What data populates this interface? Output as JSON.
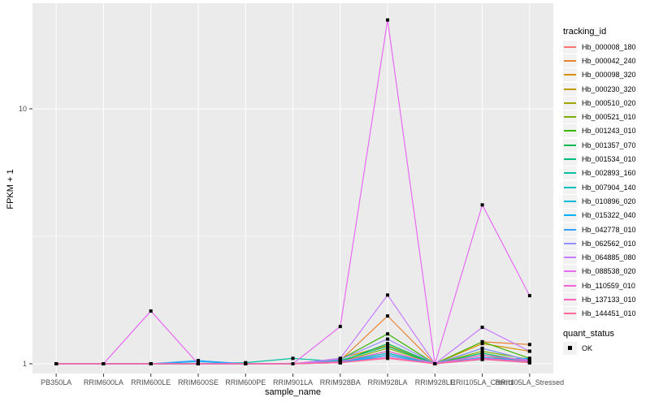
{
  "chart_data": {
    "type": "line",
    "title": "",
    "xlabel": "sample_name",
    "ylabel": "FPKM + 1",
    "y_scale": "log10",
    "y_ticks": [
      1,
      10
    ],
    "y_minor_ticks": [
      3.162
    ],
    "ylim": [
      0.92,
      26
    ],
    "grid": true,
    "legend_position": "right",
    "legend_title": "tracking_id",
    "marker": "black-square",
    "categories": [
      "PB350LA",
      "RRIM600LA",
      "RRIM600LE",
      "RRIM600SE",
      "RRIM600PE",
      "RRIM901LA",
      "RRIM928BA",
      "RRIM928LA",
      "RRIM928LE",
      "RRII105LA_Control",
      "RRII105LA_Stressed"
    ],
    "series": [
      {
        "name": "Hb_000008_180",
        "color": "#F8766D",
        "values": [
          1.0,
          1.0,
          1.0,
          1.0,
          1.0,
          1.0,
          1.02,
          1.1,
          1.0,
          1.06,
          1.02
        ]
      },
      {
        "name": "Hb_000042_240",
        "color": "#EA8331",
        "values": [
          1.0,
          1.0,
          1.0,
          1.0,
          1.0,
          1.0,
          1.03,
          1.54,
          1.0,
          1.22,
          1.19
        ]
      },
      {
        "name": "Hb_000098_320",
        "color": "#D89000",
        "values": [
          1.0,
          1.0,
          1.0,
          1.0,
          1.0,
          1.0,
          1.05,
          1.18,
          1.0,
          1.2,
          1.12
        ]
      },
      {
        "name": "Hb_000230_320",
        "color": "#C09B00",
        "values": [
          1.0,
          1.0,
          1.0,
          1.0,
          1.0,
          1.0,
          1.02,
          1.12,
          1.0,
          1.1,
          1.02
        ]
      },
      {
        "name": "Hb_000510_020",
        "color": "#A3A500",
        "values": [
          1.0,
          1.0,
          1.0,
          1.0,
          1.0,
          1.0,
          1.01,
          1.08,
          1.0,
          1.08,
          1.01
        ]
      },
      {
        "name": "Hb_000521_010",
        "color": "#7CAE00",
        "values": [
          1.0,
          1.0,
          1.0,
          1.0,
          1.0,
          1.0,
          1.02,
          1.15,
          1.0,
          1.12,
          1.04
        ]
      },
      {
        "name": "Hb_001243_010",
        "color": "#39B600",
        "values": [
          1.0,
          1.0,
          1.0,
          1.0,
          1.0,
          1.0,
          1.04,
          1.31,
          1.0,
          1.22,
          1.05
        ]
      },
      {
        "name": "Hb_001357_070",
        "color": "#00BB4E",
        "values": [
          1.0,
          1.0,
          1.0,
          1.0,
          1.0,
          1.0,
          1.02,
          1.2,
          1.0,
          1.15,
          1.03
        ]
      },
      {
        "name": "Hb_001534_010",
        "color": "#00BF7D",
        "values": [
          1.0,
          1.0,
          1.0,
          1.0,
          1.0,
          1.0,
          1.03,
          1.17,
          1.0,
          1.1,
          1.02
        ]
      },
      {
        "name": "Hb_002893_160",
        "color": "#00C1A3",
        "values": [
          1.0,
          1.0,
          1.0,
          1.0,
          1.01,
          1.05,
          1.02,
          1.12,
          1.0,
          1.08,
          1.02
        ]
      },
      {
        "name": "Hb_007904_140",
        "color": "#00BFC4",
        "values": [
          1.0,
          1.0,
          1.0,
          1.0,
          1.0,
          1.0,
          1.02,
          1.1,
          1.0,
          1.06,
          1.02
        ]
      },
      {
        "name": "Hb_010896_020",
        "color": "#00BBDA",
        "values": [
          1.0,
          1.0,
          1.0,
          1.0,
          1.0,
          1.0,
          1.01,
          1.08,
          1.0,
          1.05,
          1.01
        ]
      },
      {
        "name": "Hb_015322_040",
        "color": "#00B0F6",
        "values": [
          1.0,
          1.0,
          1.0,
          1.02,
          1.0,
          1.0,
          1.02,
          1.06,
          1.0,
          1.04,
          1.05
        ]
      },
      {
        "name": "Hb_042778_010",
        "color": "#35A2FF",
        "values": [
          1.0,
          1.0,
          1.0,
          1.03,
          1.0,
          1.0,
          1.02,
          1.08,
          1.0,
          1.06,
          1.02
        ]
      },
      {
        "name": "Hb_062562_010",
        "color": "#9590FF",
        "values": [
          1.0,
          1.0,
          1.0,
          1.0,
          1.0,
          1.0,
          1.04,
          1.25,
          1.0,
          1.15,
          1.03
        ]
      },
      {
        "name": "Hb_064885_080",
        "color": "#C77CFF",
        "values": [
          1.0,
          1.0,
          1.0,
          1.0,
          1.0,
          1.0,
          1.05,
          1.86,
          1.0,
          1.39,
          1.12
        ]
      },
      {
        "name": "Hb_088538_020",
        "color": "#E76BF3",
        "values": [
          1.0,
          1.0,
          1.61,
          1.0,
          1.0,
          1.0,
          1.4,
          22.3,
          1.0,
          4.2,
          1.85
        ]
      },
      {
        "name": "Hb_110559_010",
        "color": "#FA62DB",
        "values": [
          1.0,
          1.0,
          1.0,
          1.0,
          1.0,
          1.0,
          1.02,
          1.12,
          1.0,
          1.08,
          1.03
        ]
      },
      {
        "name": "Hb_137133_010",
        "color": "#FF62BC",
        "values": [
          1.0,
          1.0,
          1.0,
          1.0,
          1.0,
          1.0,
          1.01,
          1.06,
          1.0,
          1.05,
          1.02
        ]
      },
      {
        "name": "Hb_144451_010",
        "color": "#FF6A98",
        "values": [
          1.0,
          1.0,
          1.0,
          1.0,
          1.0,
          1.0,
          1.01,
          1.05,
          1.0,
          1.04,
          1.01
        ]
      }
    ],
    "quant_legend": {
      "title": "quant_status",
      "items": [
        {
          "label": "OK",
          "marker": "black-square"
        }
      ]
    }
  },
  "colors": {
    "panel_bg": "#EBEBEB",
    "grid": "#FFFFFF",
    "tick_mark": "#333333",
    "tick_label": "#4D4D4D",
    "axis_title": "#000000",
    "marker": "#000000",
    "legend_key_bg": "#F2F2F2"
  }
}
